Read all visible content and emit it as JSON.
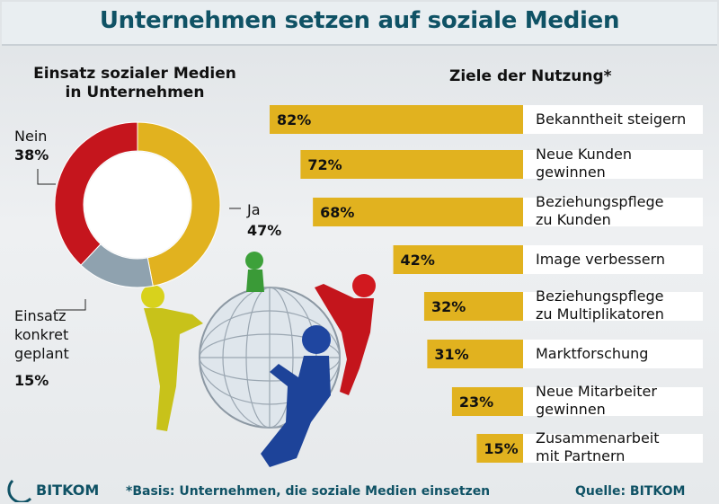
{
  "title": "Unternehmen setzen auf soziale Medien",
  "donut_title": "Einsatz sozialer Medien in Unternehmen",
  "bars_title": "Ziele der Nutzung*",
  "footnote": "*Basis: Unternehmen, die soziale Medien einsetzen",
  "source": "Quelle: BITKOM",
  "logo": "BITKOM",
  "colors": {
    "accent": "#0f5265",
    "bar": "#e1b21f",
    "ja": "#e1b21f",
    "nein": "#c5151d",
    "geplant": "#8fa2af"
  },
  "chart_data": [
    {
      "type": "pie",
      "title": "Einsatz sozialer Medien in Unternehmen",
      "slices": [
        {
          "label": "Ja",
          "value": 47,
          "display": "47%"
        },
        {
          "label": "Einsatz konkret geplant",
          "value": 15,
          "display": "15%"
        },
        {
          "label": "Nein",
          "value": 38,
          "display": "38%"
        }
      ]
    },
    {
      "type": "bar",
      "title": "Ziele der Nutzung*",
      "categories": [
        "Bekanntheit steigern",
        "Neue Kunden gewinnen",
        "Beziehungspflege zu Kunden",
        "Image verbessern",
        "Beziehungspflege zu Multiplikatoren",
        "Marktforschung",
        "Neue Mitarbeiter gewinnen",
        "Zusammenarbeit mit Partnern"
      ],
      "category_lines": [
        [
          "Bekanntheit steigern"
        ],
        [
          "Neue Kunden",
          "gewinnen"
        ],
        [
          "Beziehungspflege",
          "zu Kunden"
        ],
        [
          "Image verbessern"
        ],
        [
          "Beziehungspflege",
          "zu Multiplikatoren"
        ],
        [
          "Marktforschung"
        ],
        [
          "Neue Mitarbeiter",
          "gewinnen"
        ],
        [
          "Zusammenarbeit",
          "mit Partnern"
        ]
      ],
      "values": [
        82,
        72,
        68,
        42,
        32,
        31,
        23,
        15
      ],
      "labels": [
        "82%",
        "72%",
        "68%",
        "42%",
        "32%",
        "31%",
        "23%",
        "15%"
      ]
    }
  ],
  "donut_labels": {
    "ja_name": "Ja",
    "ja_pct": "47%",
    "nein_name": "Nein",
    "nein_pct": "38%",
    "geplant_lines": [
      "Einsatz",
      "konkret",
      "geplant"
    ],
    "geplant_pct": "15%"
  }
}
